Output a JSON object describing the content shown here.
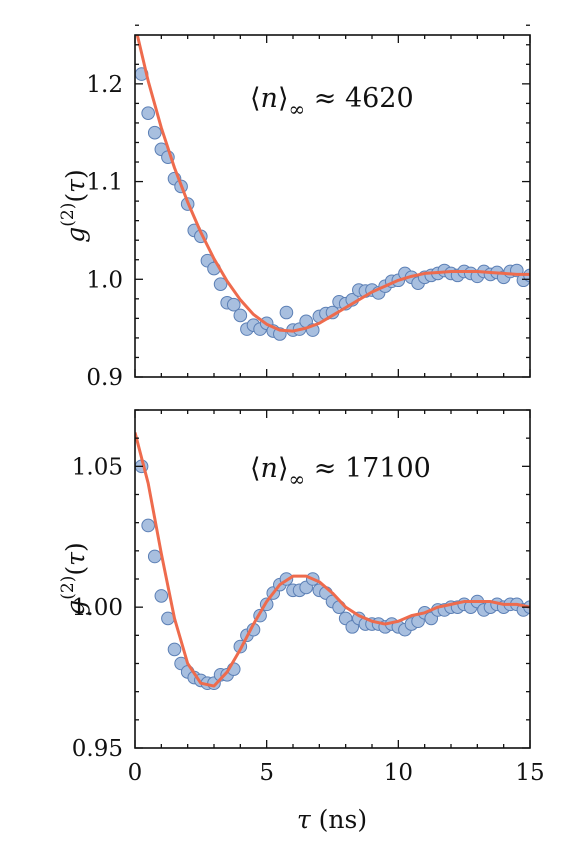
{
  "colors": {
    "marker_fill": "#a8bfdf",
    "marker_edge": "#5b7fb5",
    "fit": "#ee6b4d"
  },
  "xlabel": "τ (ns)",
  "chart_data": [
    {
      "type": "scatter",
      "ylabel": "g(2)(τ)",
      "annotation": "⟨n⟩∞ ≈ 4620",
      "xlim": [
        0,
        15
      ],
      "ylim": [
        0.9,
        1.25
      ],
      "xticks": [
        0,
        5,
        10,
        15
      ],
      "yticks": [
        0.9,
        1.0,
        1.1,
        1.2
      ],
      "yticklabels": [
        "0.9",
        "1.0",
        "1.1",
        "1.2"
      ],
      "xticklabels": [
        "",
        "",
        "",
        ""
      ],
      "grid": false,
      "series": [
        {
          "kind": "markers",
          "x": [
            0.25,
            0.5,
            0.75,
            1.0,
            1.25,
            1.5,
            1.75,
            2.0,
            2.25,
            2.5,
            2.75,
            3.0,
            3.25,
            3.5,
            3.75,
            4.0,
            4.25,
            4.5,
            4.75,
            5.0,
            5.25,
            5.5,
            5.75,
            6.0,
            6.25,
            6.5,
            6.75,
            7.0,
            7.25,
            7.5,
            7.75,
            8.0,
            8.25,
            8.5,
            8.75,
            9.0,
            9.25,
            9.5,
            9.75,
            10.0,
            10.25,
            10.5,
            10.75,
            11.0,
            11.25,
            11.5,
            11.75,
            12.0,
            12.25,
            12.5,
            12.75,
            13.0,
            13.25,
            13.5,
            13.75,
            14.0,
            14.25,
            14.5,
            14.75,
            15.0
          ],
          "y": [
            1.21,
            1.17,
            1.15,
            1.133,
            1.125,
            1.103,
            1.095,
            1.077,
            1.05,
            1.044,
            1.019,
            1.011,
            0.995,
            0.976,
            0.974,
            0.963,
            0.949,
            0.953,
            0.949,
            0.955,
            0.947,
            0.944,
            0.966,
            0.948,
            0.949,
            0.957,
            0.948,
            0.962,
            0.965,
            0.966,
            0.977,
            0.975,
            0.979,
            0.989,
            0.988,
            0.989,
            0.986,
            0.993,
            0.998,
            0.999,
            1.006,
            1.002,
            0.996,
            1.002,
            1.004,
            1.006,
            1.009,
            1.006,
            1.004,
            1.008,
            1.006,
            1.003,
            1.008,
            1.005,
            1.007,
            1.002,
            1.008,
            1.009,
            0.999,
            1.004
          ]
        },
        {
          "kind": "line",
          "x": [
            0,
            0.5,
            1,
            1.5,
            2,
            2.5,
            3,
            3.5,
            4,
            4.5,
            5,
            5.5,
            6,
            6.5,
            7,
            7.5,
            8,
            8.5,
            9,
            9.5,
            10,
            10.5,
            11,
            11.5,
            12,
            12.5,
            13,
            13.5,
            14,
            14.5,
            15
          ],
          "y": [
            1.26,
            1.203,
            1.155,
            1.114,
            1.079,
            1.048,
            1.021,
            0.998,
            0.979,
            0.964,
            0.954,
            0.948,
            0.947,
            0.95,
            0.955,
            0.963,
            0.971,
            0.979,
            0.987,
            0.993,
            0.999,
            1.003,
            1.006,
            1.007,
            1.008,
            1.008,
            1.008,
            1.007,
            1.006,
            1.005,
            1.005
          ]
        }
      ]
    },
    {
      "type": "scatter",
      "ylabel": "g(2)(τ)",
      "annotation": "⟨n⟩∞ ≈ 17100",
      "xlim": [
        0,
        15
      ],
      "ylim": [
        0.95,
        1.07
      ],
      "xticks": [
        0,
        5,
        10,
        15
      ],
      "xticklabels": [
        "0",
        "5",
        "10",
        "15"
      ],
      "yticks": [
        0.95,
        1.0,
        1.05
      ],
      "yticklabels": [
        "0.95",
        "1.00",
        "1.05"
      ],
      "grid": false,
      "series": [
        {
          "kind": "markers",
          "x": [
            0.25,
            0.5,
            0.75,
            1.0,
            1.25,
            1.5,
            1.75,
            2.0,
            2.25,
            2.5,
            2.75,
            3.0,
            3.25,
            3.5,
            3.75,
            4.0,
            4.25,
            4.5,
            4.75,
            5.0,
            5.25,
            5.5,
            5.75,
            6.0,
            6.25,
            6.5,
            6.75,
            7.0,
            7.25,
            7.5,
            7.75,
            8.0,
            8.25,
            8.5,
            8.75,
            9.0,
            9.25,
            9.5,
            9.75,
            10.0,
            10.25,
            10.5,
            10.75,
            11.0,
            11.25,
            11.5,
            11.75,
            12.0,
            12.25,
            12.5,
            12.75,
            13.0,
            13.25,
            13.5,
            13.75,
            14.0,
            14.25,
            14.5,
            14.75,
            15.0
          ],
          "y": [
            1.05,
            1.029,
            1.018,
            1.004,
            0.996,
            0.985,
            0.98,
            0.977,
            0.975,
            0.974,
            0.973,
            0.973,
            0.976,
            0.976,
            0.978,
            0.986,
            0.99,
            0.992,
            0.997,
            1.001,
            1.005,
            1.008,
            1.01,
            1.006,
            1.006,
            1.007,
            1.01,
            1.006,
            1.005,
            1.002,
            1.0,
            0.996,
            0.993,
            0.996,
            0.994,
            0.994,
            0.994,
            0.993,
            0.994,
            0.993,
            0.992,
            0.994,
            0.995,
            0.998,
            0.996,
            0.999,
            0.999,
            1.0,
            1.0,
            1.001,
            1.0,
            1.002,
            0.999,
            1.0,
            1.001,
            1.0,
            1.001,
            1.001,
            0.999,
            1.0
          ]
        },
        {
          "kind": "line",
          "x": [
            0,
            0.5,
            1,
            1.5,
            2,
            2.5,
            3,
            3.5,
            4,
            4.5,
            5,
            5.5,
            6,
            6.5,
            7,
            7.5,
            8,
            8.5,
            9,
            9.5,
            10,
            10.5,
            11,
            11.5,
            12,
            12.5,
            13,
            13.5,
            14,
            14.5,
            15
          ],
          "y": [
            1.062,
            1.044,
            1.019,
            0.996,
            0.98,
            0.973,
            0.972,
            0.977,
            0.985,
            0.994,
            1.002,
            1.008,
            1.011,
            1.011,
            1.009,
            1.005,
            1.0,
            0.997,
            0.995,
            0.994,
            0.995,
            0.997,
            0.998,
            1.0,
            1.001,
            1.002,
            1.002,
            1.002,
            1.001,
            1.001,
            1.0
          ]
        }
      ]
    }
  ]
}
